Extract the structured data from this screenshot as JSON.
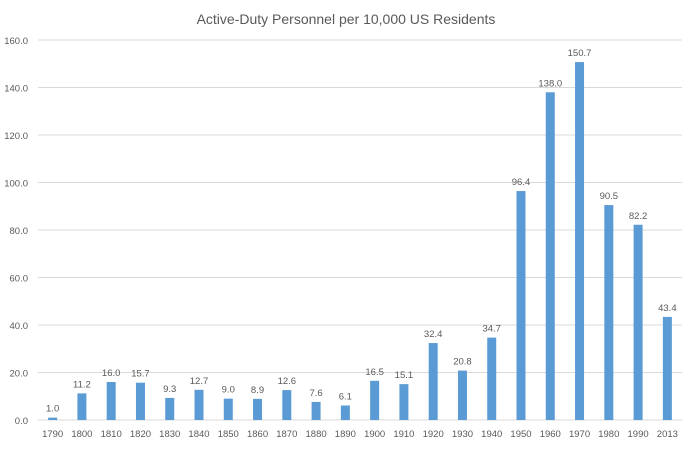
{
  "chart_data": {
    "type": "bar",
    "title": "Active-Duty Personnel per 10,000 US Residents",
    "xlabel": "",
    "ylabel": "",
    "ylim": [
      0,
      160
    ],
    "yticks": [
      "0.0",
      "20.0",
      "40.0",
      "60.0",
      "80.0",
      "100.0",
      "120.0",
      "140.0",
      "160.0"
    ],
    "grid": true,
    "categories": [
      "1790",
      "1800",
      "1810",
      "1820",
      "1830",
      "1840",
      "1850",
      "1860",
      "1870",
      "1880",
      "1890",
      "1900",
      "1910",
      "1920",
      "1930",
      "1940",
      "1950",
      "1960",
      "1970",
      "1980",
      "1990",
      "2013"
    ],
    "values": [
      1.0,
      11.2,
      16.0,
      15.7,
      9.3,
      12.7,
      9.0,
      8.9,
      12.6,
      7.6,
      6.1,
      16.5,
      15.1,
      32.4,
      20.8,
      34.7,
      96.4,
      138.0,
      150.7,
      90.5,
      82.2,
      43.4
    ],
    "value_labels": [
      "1.0",
      "11.2",
      "16.0",
      "15.7",
      "9.3",
      "12.7",
      "9.0",
      "8.9",
      "12.6",
      "7.6",
      "6.1",
      "16.5",
      "15.1",
      "32.4",
      "20.8",
      "34.7",
      "96.4",
      "138.0",
      "150.7",
      "90.5",
      "82.2",
      "43.4"
    ],
    "bar_color": "#5b9bd5",
    "grid_color": "#d9d9d9",
    "text_color": "#595959"
  }
}
